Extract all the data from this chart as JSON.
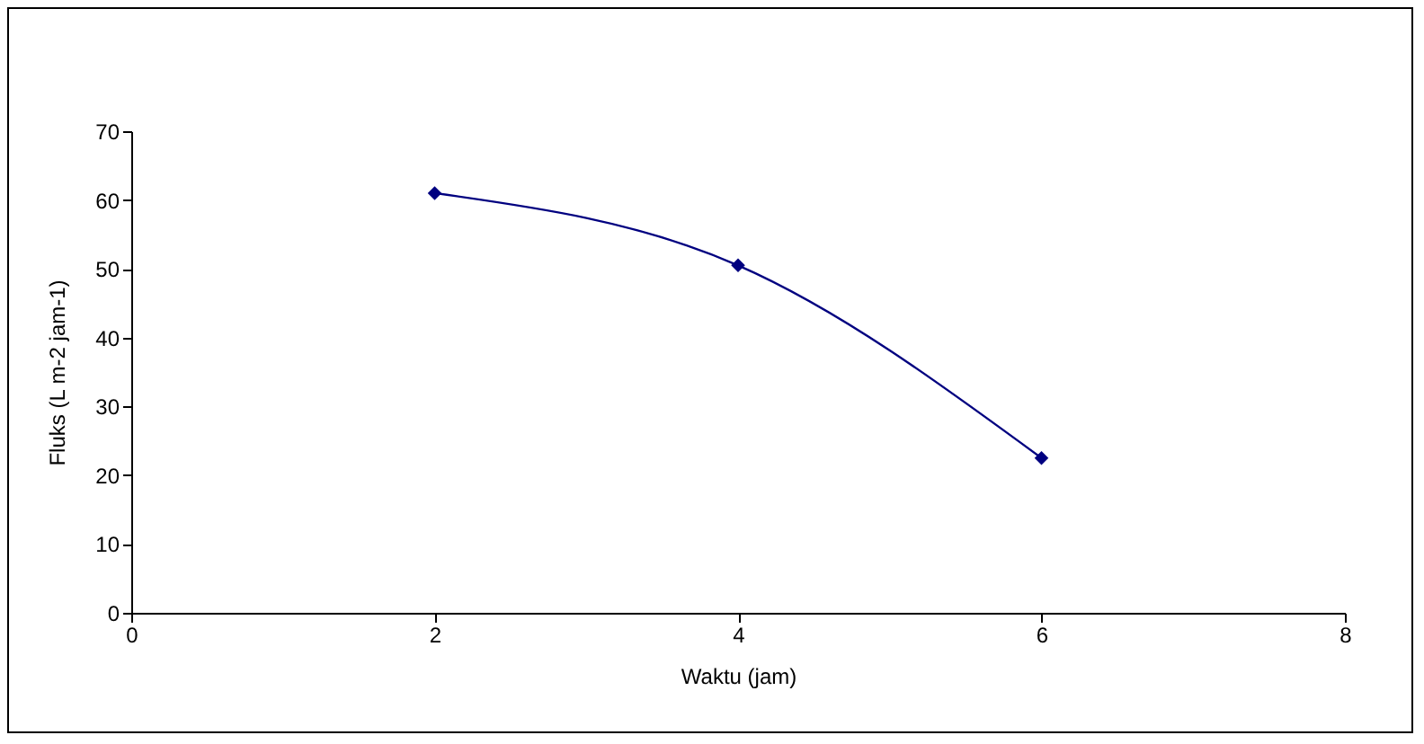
{
  "chart_data": {
    "type": "line",
    "xlabel": "Waktu (jam)",
    "ylabel": "Fluks (L m-2 jam-1)",
    "x": [
      2,
      4,
      6
    ],
    "series": [
      {
        "color": "#000080",
        "values": [
          61,
          50.5,
          22.5
        ]
      }
    ],
    "xlim": [
      0,
      8
    ],
    "xticks": [
      0,
      2,
      4,
      6,
      8
    ],
    "ylim": [
      0,
      70
    ],
    "yticks": [
      0,
      10,
      20,
      30,
      40,
      50,
      60,
      70
    ],
    "marker": "diamond",
    "line_style": "solid",
    "legend": false,
    "grid": false
  }
}
